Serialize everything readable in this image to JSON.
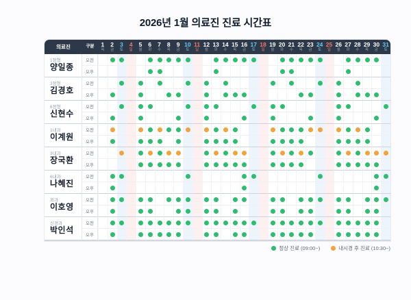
{
  "title": "2026년 1월 의료진 진료 시간표",
  "colors": {
    "green": "#2cbe6e",
    "orange": "#f2a33c",
    "header_bg": "#2d3949",
    "sat_text": "#6cc8ee",
    "sun_text": "#f3766d",
    "sat_col": "#edf4fb",
    "sun_col": "#fdf0ef"
  },
  "legend": [
    {
      "color": "green",
      "label": "정상 진료 (09:00~)"
    },
    {
      "color": "orange",
      "label": "내시경 후 진료 (10:30~)"
    }
  ],
  "table": {
    "staff_header": "의료진",
    "division_header": "구분",
    "division_rows": [
      "오전",
      "오후"
    ],
    "days": [
      {
        "n": 1,
        "w": "목",
        "t": ""
      },
      {
        "n": 2,
        "w": "금",
        "t": ""
      },
      {
        "n": 3,
        "w": "토",
        "t": "sat"
      },
      {
        "n": 4,
        "w": "일",
        "t": "sun"
      },
      {
        "n": 5,
        "w": "월",
        "t": ""
      },
      {
        "n": 6,
        "w": "화",
        "t": ""
      },
      {
        "n": 7,
        "w": "수",
        "t": ""
      },
      {
        "n": 8,
        "w": "목",
        "t": ""
      },
      {
        "n": 9,
        "w": "금",
        "t": ""
      },
      {
        "n": 10,
        "w": "토",
        "t": "sat"
      },
      {
        "n": 11,
        "w": "일",
        "t": "sun"
      },
      {
        "n": 12,
        "w": "월",
        "t": ""
      },
      {
        "n": 13,
        "w": "화",
        "t": ""
      },
      {
        "n": 14,
        "w": "수",
        "t": ""
      },
      {
        "n": 15,
        "w": "목",
        "t": ""
      },
      {
        "n": 16,
        "w": "금",
        "t": ""
      },
      {
        "n": 17,
        "w": "토",
        "t": "sat"
      },
      {
        "n": 18,
        "w": "일",
        "t": "sun"
      },
      {
        "n": 19,
        "w": "월",
        "t": ""
      },
      {
        "n": 20,
        "w": "화",
        "t": ""
      },
      {
        "n": 21,
        "w": "수",
        "t": ""
      },
      {
        "n": 22,
        "w": "목",
        "t": ""
      },
      {
        "n": 23,
        "w": "금",
        "t": ""
      },
      {
        "n": 24,
        "w": "토",
        "t": "sat"
      },
      {
        "n": 25,
        "w": "일",
        "t": "sun"
      },
      {
        "n": 26,
        "w": "월",
        "t": ""
      },
      {
        "n": 27,
        "w": "화",
        "t": ""
      },
      {
        "n": 28,
        "w": "수",
        "t": ""
      },
      {
        "n": 29,
        "w": "목",
        "t": ""
      },
      {
        "n": 30,
        "w": "금",
        "t": ""
      },
      {
        "n": 31,
        "w": "토",
        "t": "sat"
      }
    ],
    "doctors": [
      {
        "dept": "1정형",
        "name": "양일종",
        "am": {
          "2": "g",
          "3": "g",
          "6": "g",
          "7": "g",
          "8": "g",
          "9": "g",
          "10": "g",
          "13": "g",
          "14": "g",
          "15": "g",
          "16": "g",
          "17": "g",
          "20": "g",
          "21": "g",
          "22": "g",
          "23": "g",
          "24": "g",
          "27": "g",
          "28": "g",
          "29": "g",
          "30": "g"
        },
        "pm": {
          "6": "g",
          "7": "g",
          "13": "g",
          "20": "g",
          "21": "g",
          "27": "g"
        }
      },
      {
        "dept": "3정형",
        "name": "김경호",
        "am": {
          "3": "g",
          "5": "g",
          "7": "g",
          "10": "g",
          "12": "g",
          "14": "g",
          "19": "g",
          "21": "g",
          "24": "g",
          "26": "g",
          "28": "g"
        },
        "pm": {
          "2": "g",
          "5": "g",
          "8": "g",
          "9": "g",
          "12": "g",
          "14": "g",
          "15": "g",
          "16": "g",
          "22": "g",
          "23": "g",
          "26": "g",
          "28": "g",
          "29": "g",
          "30": "g"
        }
      },
      {
        "dept": "6정형",
        "name": "신현수",
        "am": {
          "3": "g",
          "5": "g",
          "6": "g",
          "10": "g",
          "12": "g",
          "13": "g",
          "17": "g",
          "19": "g",
          "20": "g",
          "26": "g",
          "27": "g",
          "31": "g"
        },
        "pm": {
          "2": "g",
          "5": "g",
          "9": "g",
          "12": "g",
          "16": "g",
          "19": "g",
          "23": "g",
          "26": "g",
          "30": "g"
        }
      },
      {
        "dept": "1내과",
        "name": "이계원",
        "am": {
          "2": "o",
          "5": "o",
          "6": "g",
          "7": "o",
          "8": "g",
          "9": "g",
          "10": "o",
          "12": "o",
          "13": "g",
          "14": "o",
          "15": "g",
          "19": "o",
          "20": "g",
          "21": "g",
          "22": "g",
          "23": "o",
          "24": "o",
          "26": "o",
          "27": "g",
          "28": "o",
          "29": "g"
        },
        "pm": {
          "2": "g",
          "5": "g",
          "6": "g",
          "7": "g",
          "9": "g",
          "12": "g",
          "13": "g",
          "14": "g",
          "15": "g",
          "19": "g",
          "20": "g",
          "21": "g",
          "22": "g",
          "26": "g",
          "27": "g",
          "28": "g",
          "29": "g"
        }
      },
      {
        "dept": "3내과",
        "name": "장국환",
        "am": {
          "3": "o",
          "5": "g",
          "6": "o",
          "7": "g",
          "8": "o",
          "9": "o",
          "12": "g",
          "13": "o",
          "14": "g",
          "15": "o",
          "16": "o",
          "19": "g",
          "20": "o",
          "21": "g",
          "22": "o",
          "23": "g",
          "26": "g",
          "27": "o",
          "28": "g",
          "29": "o",
          "30": "o",
          "31": "o"
        },
        "pm": {
          "5": "g",
          "6": "g",
          "7": "g",
          "8": "g",
          "9": "g",
          "12": "g",
          "13": "g",
          "14": "g",
          "15": "g",
          "16": "g",
          "19": "g",
          "20": "g",
          "21": "g",
          "22": "g",
          "26": "g",
          "27": "g",
          "28": "g",
          "29": "g",
          "30": "g"
        }
      },
      {
        "dept": "6내과",
        "name": "나혜진",
        "am": {
          "2": "g",
          "3": "g",
          "10": "g",
          "16": "g",
          "17": "g",
          "24": "g",
          "30": "g",
          "31": "g"
        },
        "pm": {
          "2": "g",
          "16": "g",
          "30": "g"
        }
      },
      {
        "dept": "외과",
        "name": "이호영",
        "am": {
          "2": "g",
          "3": "g",
          "5": "g",
          "6": "g",
          "8": "g",
          "9": "g",
          "10": "g",
          "12": "g",
          "13": "g",
          "15": "g",
          "16": "g",
          "19": "g",
          "20": "g",
          "22": "g",
          "23": "g",
          "24": "g",
          "26": "g",
          "27": "g",
          "29": "g",
          "30": "g",
          "31": "g"
        },
        "pm": {
          "2": "g",
          "5": "g",
          "6": "g",
          "9": "g",
          "10": "g",
          "12": "g",
          "13": "g",
          "15": "g",
          "19": "g",
          "20": "g",
          "22": "g",
          "23": "g",
          "26": "g",
          "27": "g",
          "29": "g",
          "30": "g"
        }
      },
      {
        "dept": "신경과",
        "name": "박인석",
        "am": {
          "2": "g",
          "3": "g",
          "5": "g",
          "6": "g",
          "7": "g",
          "8": "g",
          "9": "g",
          "10": "g",
          "12": "g",
          "13": "g",
          "14": "g",
          "15": "g",
          "16": "g",
          "17": "g",
          "19": "g",
          "20": "g",
          "21": "g",
          "22": "g",
          "23": "g",
          "24": "g",
          "26": "g",
          "27": "g",
          "28": "g",
          "29": "g",
          "30": "g"
        },
        "pm": {
          "2": "g",
          "5": "g",
          "6": "g",
          "7": "g",
          "8": "g",
          "9": "g",
          "12": "g",
          "13": "g",
          "15": "g",
          "16": "g",
          "19": "g",
          "20": "g",
          "21": "g",
          "22": "g",
          "23": "g",
          "26": "g",
          "27": "g",
          "28": "g",
          "29": "g",
          "30": "g"
        }
      }
    ]
  }
}
